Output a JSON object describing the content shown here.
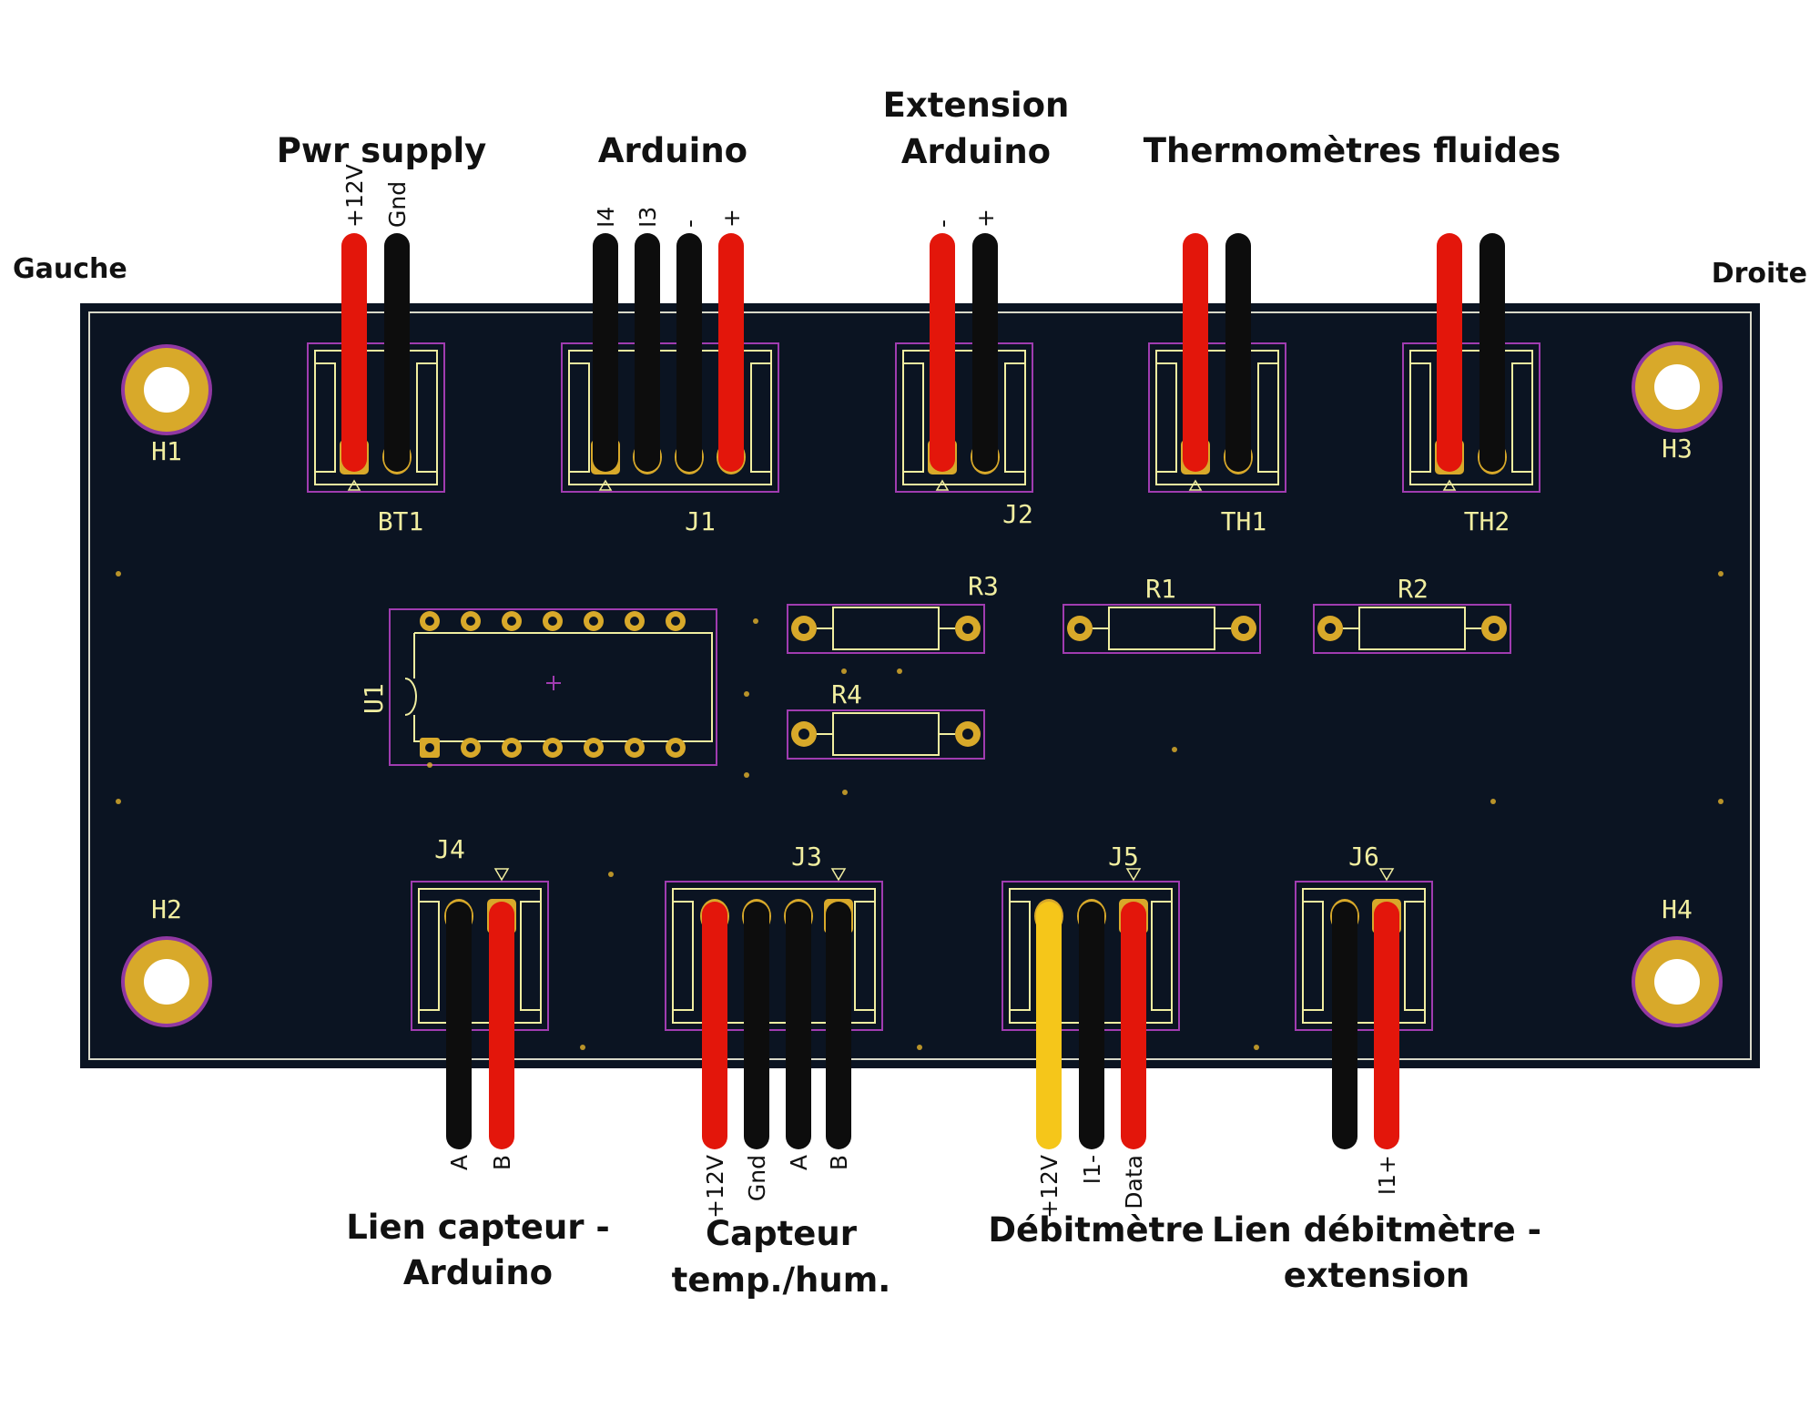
{
  "sides": {
    "left": "Gauche",
    "right": "Droite"
  },
  "colors": {
    "board": "#0b1422",
    "board_edge": "#d8d8c8",
    "pad": "#d8a92a",
    "silk": "#f1eea0",
    "courtyard": "#a03cb0",
    "wire_red": "#e3160b",
    "wire_black": "#0d0d0d",
    "wire_yellow": "#f5c61a"
  },
  "top_groups": [
    {
      "id": "pwr",
      "title_lines": [
        "Pwr supply"
      ]
    },
    {
      "id": "arduino",
      "title_lines": [
        "Arduino"
      ]
    },
    {
      "id": "ext",
      "title_lines": [
        "Extension",
        "Arduino"
      ]
    },
    {
      "id": "thermo",
      "title_lines": [
        "Thermomètres fluides"
      ]
    }
  ],
  "bottom_groups": [
    {
      "id": "j4grp",
      "title_lines": [
        "Lien capteur -",
        "Arduino"
      ]
    },
    {
      "id": "j3grp",
      "title_lines": [
        "Capteur",
        "temp./hum."
      ]
    },
    {
      "id": "j5grp",
      "title_lines": [
        "Débitmètre"
      ]
    },
    {
      "id": "j6grp",
      "title_lines": [
        "Lien débitmètre -",
        "extension"
      ]
    }
  ],
  "connectors": [
    {
      "ref": "BT1",
      "side": "top",
      "wires": [
        {
          "color": "red",
          "label": "+12V"
        },
        {
          "color": "black",
          "label": "Gnd"
        }
      ]
    },
    {
      "ref": "J1",
      "side": "top",
      "wires": [
        {
          "color": "black",
          "label": "I4"
        },
        {
          "color": "black",
          "label": "I3"
        },
        {
          "color": "black",
          "label": "-"
        },
        {
          "color": "red",
          "label": "+"
        }
      ]
    },
    {
      "ref": "J2",
      "side": "top",
      "wires": [
        {
          "color": "red",
          "label": "-"
        },
        {
          "color": "black",
          "label": "+"
        }
      ]
    },
    {
      "ref": "TH1",
      "side": "top",
      "wires": [
        {
          "color": "red",
          "label": ""
        },
        {
          "color": "black",
          "label": ""
        }
      ]
    },
    {
      "ref": "TH2",
      "side": "top",
      "wires": [
        {
          "color": "red",
          "label": ""
        },
        {
          "color": "black",
          "label": ""
        }
      ]
    },
    {
      "ref": "J4",
      "side": "bottom",
      "wires": [
        {
          "color": "black",
          "label": "A"
        },
        {
          "color": "red",
          "label": "B"
        }
      ]
    },
    {
      "ref": "J3",
      "side": "bottom",
      "wires": [
        {
          "color": "red",
          "label": "+12V"
        },
        {
          "color": "black",
          "label": "Gnd"
        },
        {
          "color": "black",
          "label": "A"
        },
        {
          "color": "black",
          "label": "B"
        }
      ]
    },
    {
      "ref": "J5",
      "side": "bottom",
      "wires": [
        {
          "color": "yellow",
          "label": "+12V"
        },
        {
          "color": "black",
          "label": "I1-"
        },
        {
          "color": "red",
          "label": "Data"
        }
      ]
    },
    {
      "ref": "J6",
      "side": "bottom",
      "wires": [
        {
          "color": "black",
          "label": ""
        },
        {
          "color": "red",
          "label": "I1+"
        }
      ]
    }
  ],
  "holes": [
    "H1",
    "H2",
    "H3",
    "H4"
  ],
  "resistors": [
    "R1",
    "R2",
    "R3",
    "R4"
  ],
  "ic": {
    "ref": "U1",
    "pins_per_side": 7
  }
}
